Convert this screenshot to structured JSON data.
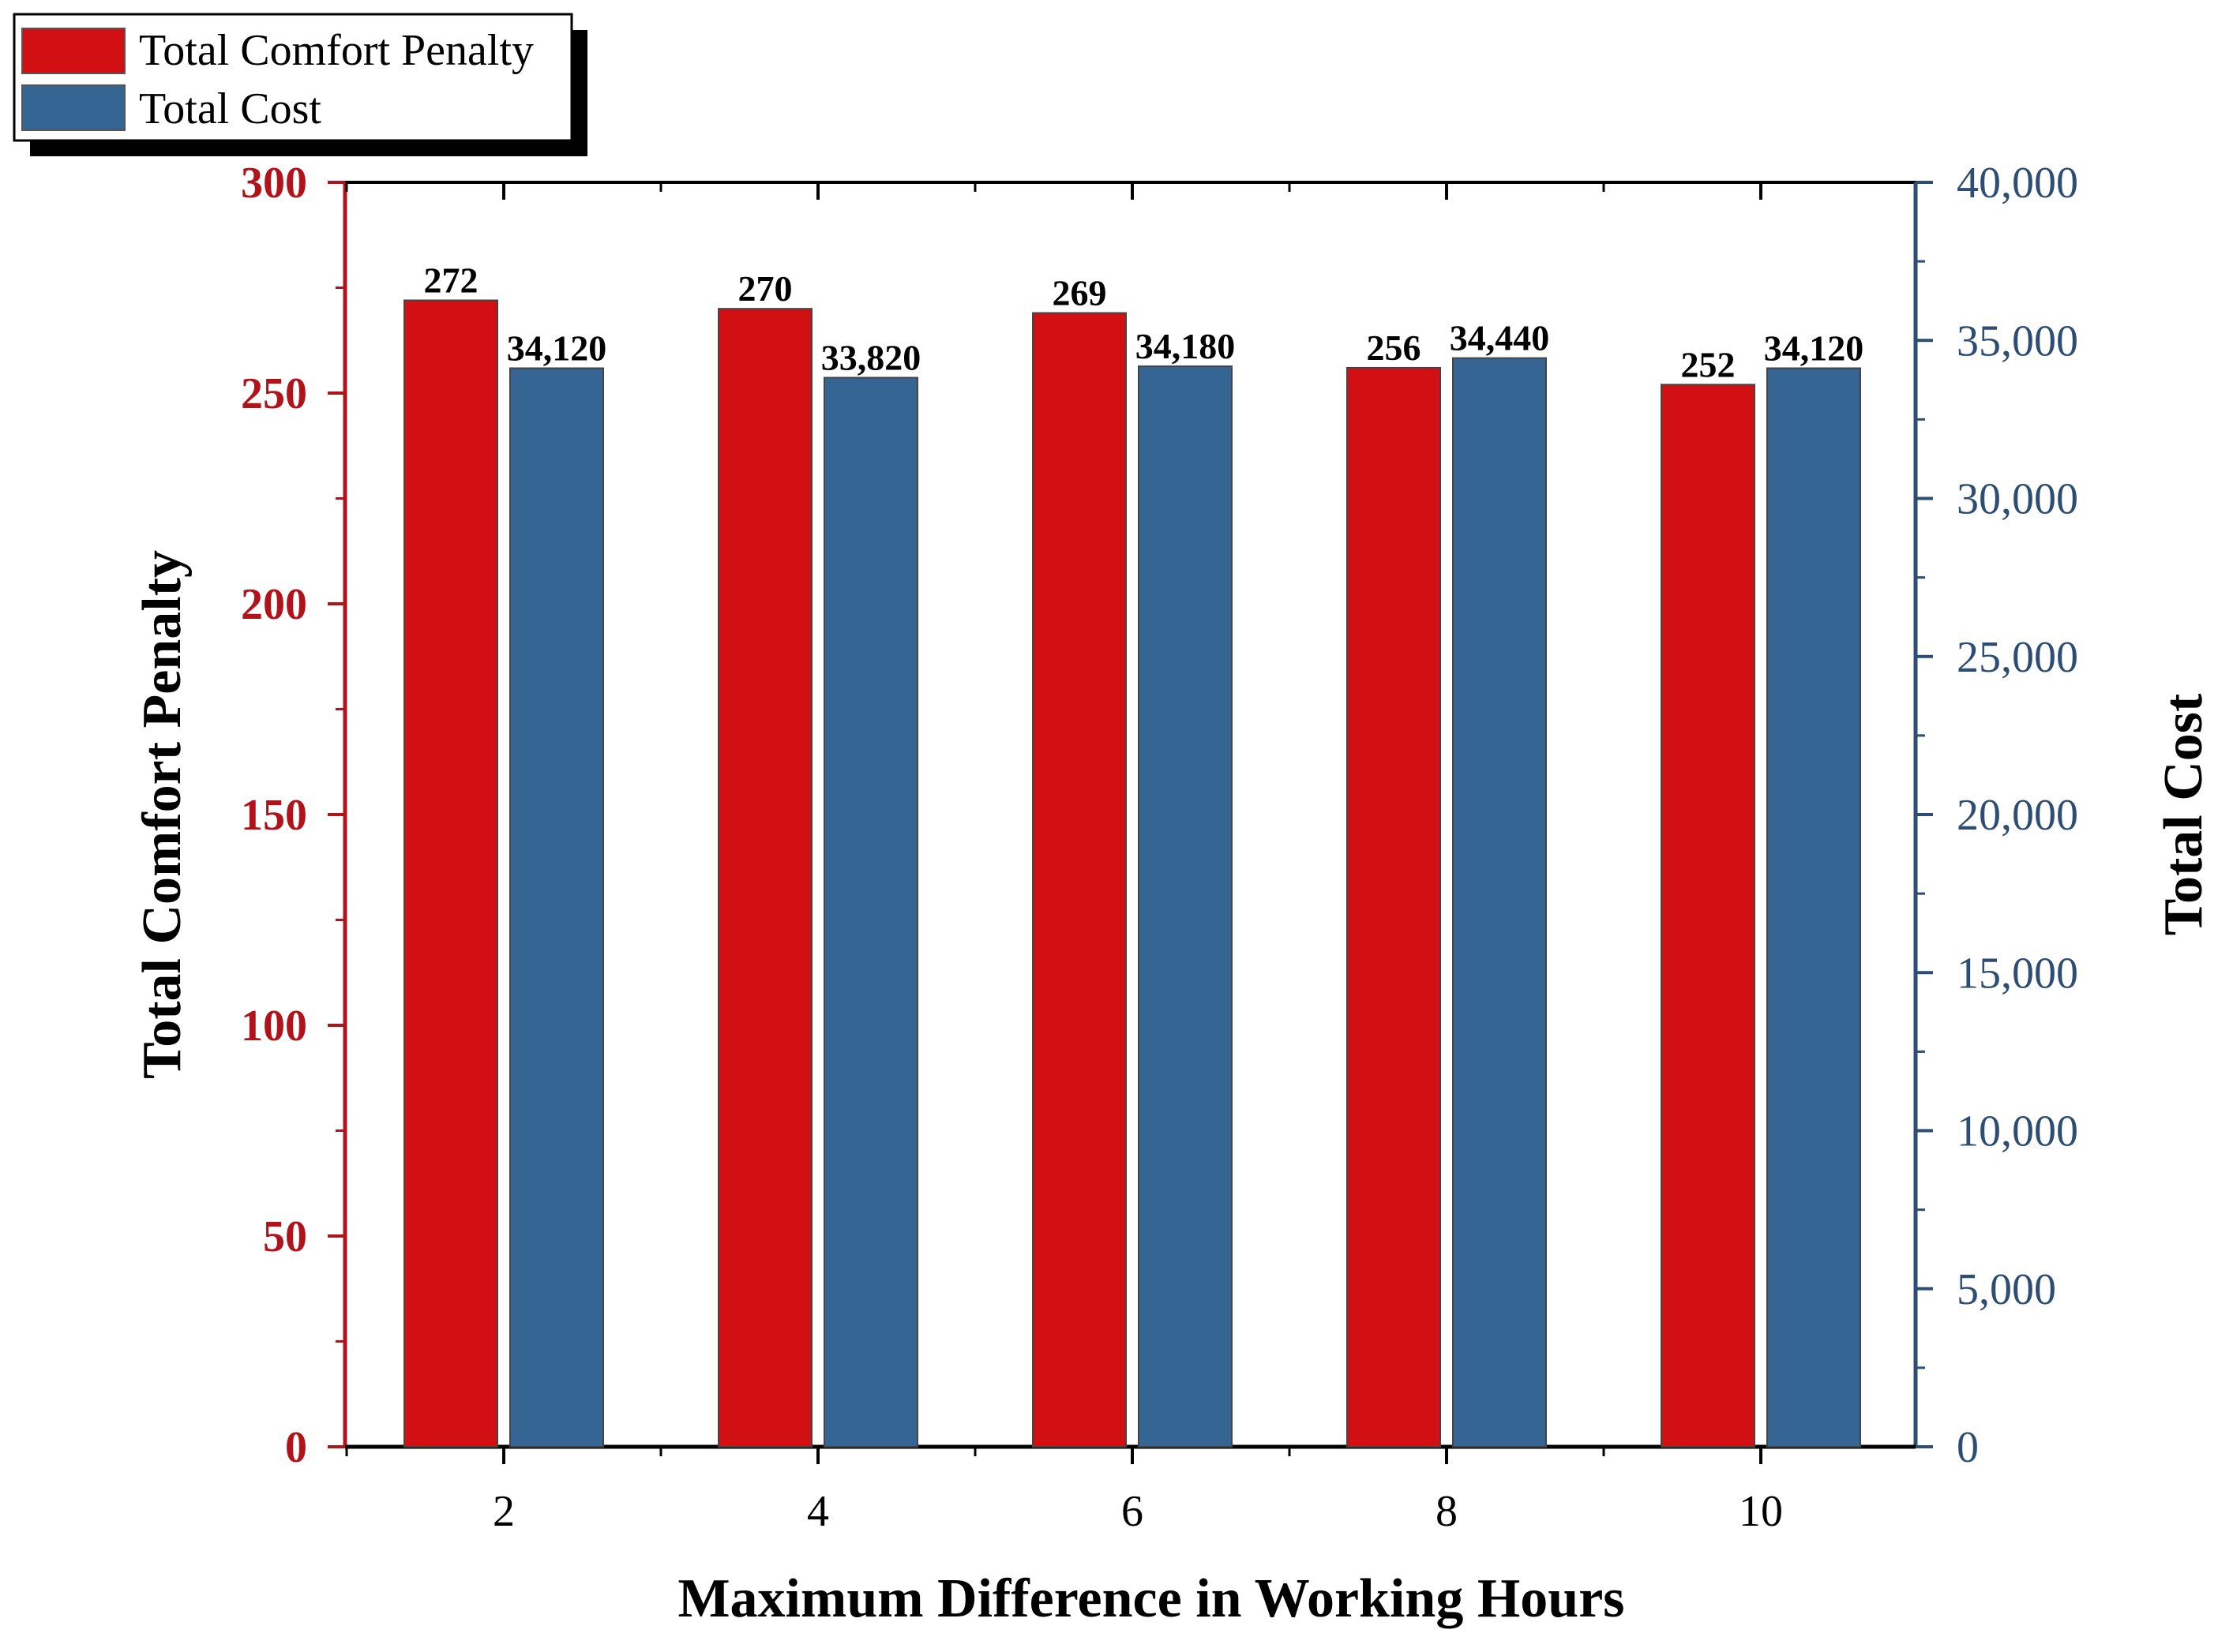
{
  "chart_data": {
    "type": "bar",
    "categories": [
      "2",
      "4",
      "6",
      "8",
      "10"
    ],
    "xlabel": "Maximum Difference in Working Hours",
    "series": [
      {
        "name": "Total Comfort Penalty",
        "axis": "left",
        "color": "#d21014",
        "values": [
          272,
          270,
          269,
          256,
          252
        ],
        "labels": [
          "272",
          "270",
          "269",
          "256",
          "252"
        ]
      },
      {
        "name": "Total Cost",
        "axis": "right",
        "color": "#356593",
        "values": [
          34120,
          33820,
          34180,
          34440,
          34120
        ],
        "labels": [
          "34,120",
          "33,820",
          "34,180",
          "34,440",
          "34,120"
        ]
      }
    ],
    "left_axis": {
      "label": "Total Comfort Penalty",
      "color": "#b0141a",
      "ylim": [
        0,
        300
      ],
      "ticks": [
        0,
        50,
        100,
        150,
        200,
        250,
        300
      ],
      "tick_labels": [
        "0",
        "50",
        "100",
        "150",
        "200",
        "250",
        "300"
      ]
    },
    "right_axis": {
      "label": "Total Cost",
      "color": "#2e4d73",
      "ylim": [
        0,
        40000
      ],
      "ticks": [
        0,
        5000,
        10000,
        15000,
        20000,
        25000,
        30000,
        35000,
        40000
      ],
      "tick_labels": [
        "0",
        "5,000",
        "10,000",
        "15,000",
        "20,000",
        "25,000",
        "30,000",
        "35,000",
        "40,000"
      ]
    },
    "legend": {
      "position": "top-left",
      "entries": [
        "Total Comfort Penalty",
        "Total Cost"
      ]
    },
    "grid": false
  }
}
